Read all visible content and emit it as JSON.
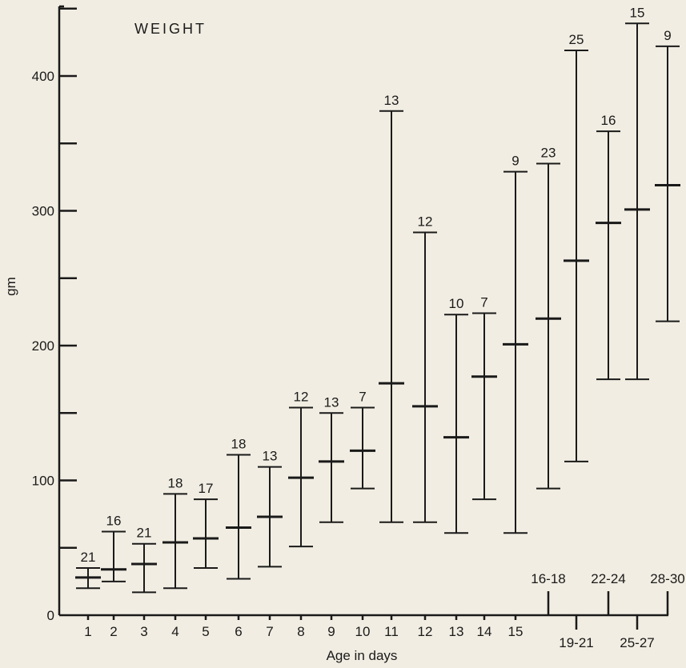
{
  "chart_data": {
    "type": "range",
    "title": "WEIGHT",
    "xlabel": "Age in days",
    "ylabel": "gm",
    "ylim": [
      0,
      450
    ],
    "yticks": [
      0,
      100,
      200,
      300,
      400
    ],
    "categories": [
      "1",
      "2",
      "3",
      "4",
      "5",
      "6",
      "7",
      "8",
      "9",
      "10",
      "11",
      "12",
      "13",
      "14",
      "15",
      "16-18",
      "19-21",
      "22-24",
      "25-27",
      "28-30"
    ],
    "series": [
      {
        "min": [
          20,
          25,
          17,
          20,
          35,
          27,
          36,
          51,
          69,
          94,
          69,
          69,
          61,
          86,
          61,
          94,
          114,
          175,
          175,
          218
        ],
        "mean": [
          28,
          34,
          38,
          54,
          57,
          65,
          73,
          102,
          114,
          122,
          172,
          155,
          132,
          177,
          201,
          220,
          263,
          291,
          301,
          319
        ],
        "max": [
          35,
          62,
          53,
          90,
          86,
          119,
          110,
          154,
          150,
          154,
          374,
          284,
          223,
          224,
          329,
          335,
          419,
          359,
          439,
          422
        ],
        "n": [
          21,
          16,
          21,
          18,
          17,
          18,
          13,
          12,
          13,
          7,
          13,
          12,
          10,
          7,
          9,
          23,
          25,
          16,
          15,
          9
        ]
      }
    ]
  }
}
